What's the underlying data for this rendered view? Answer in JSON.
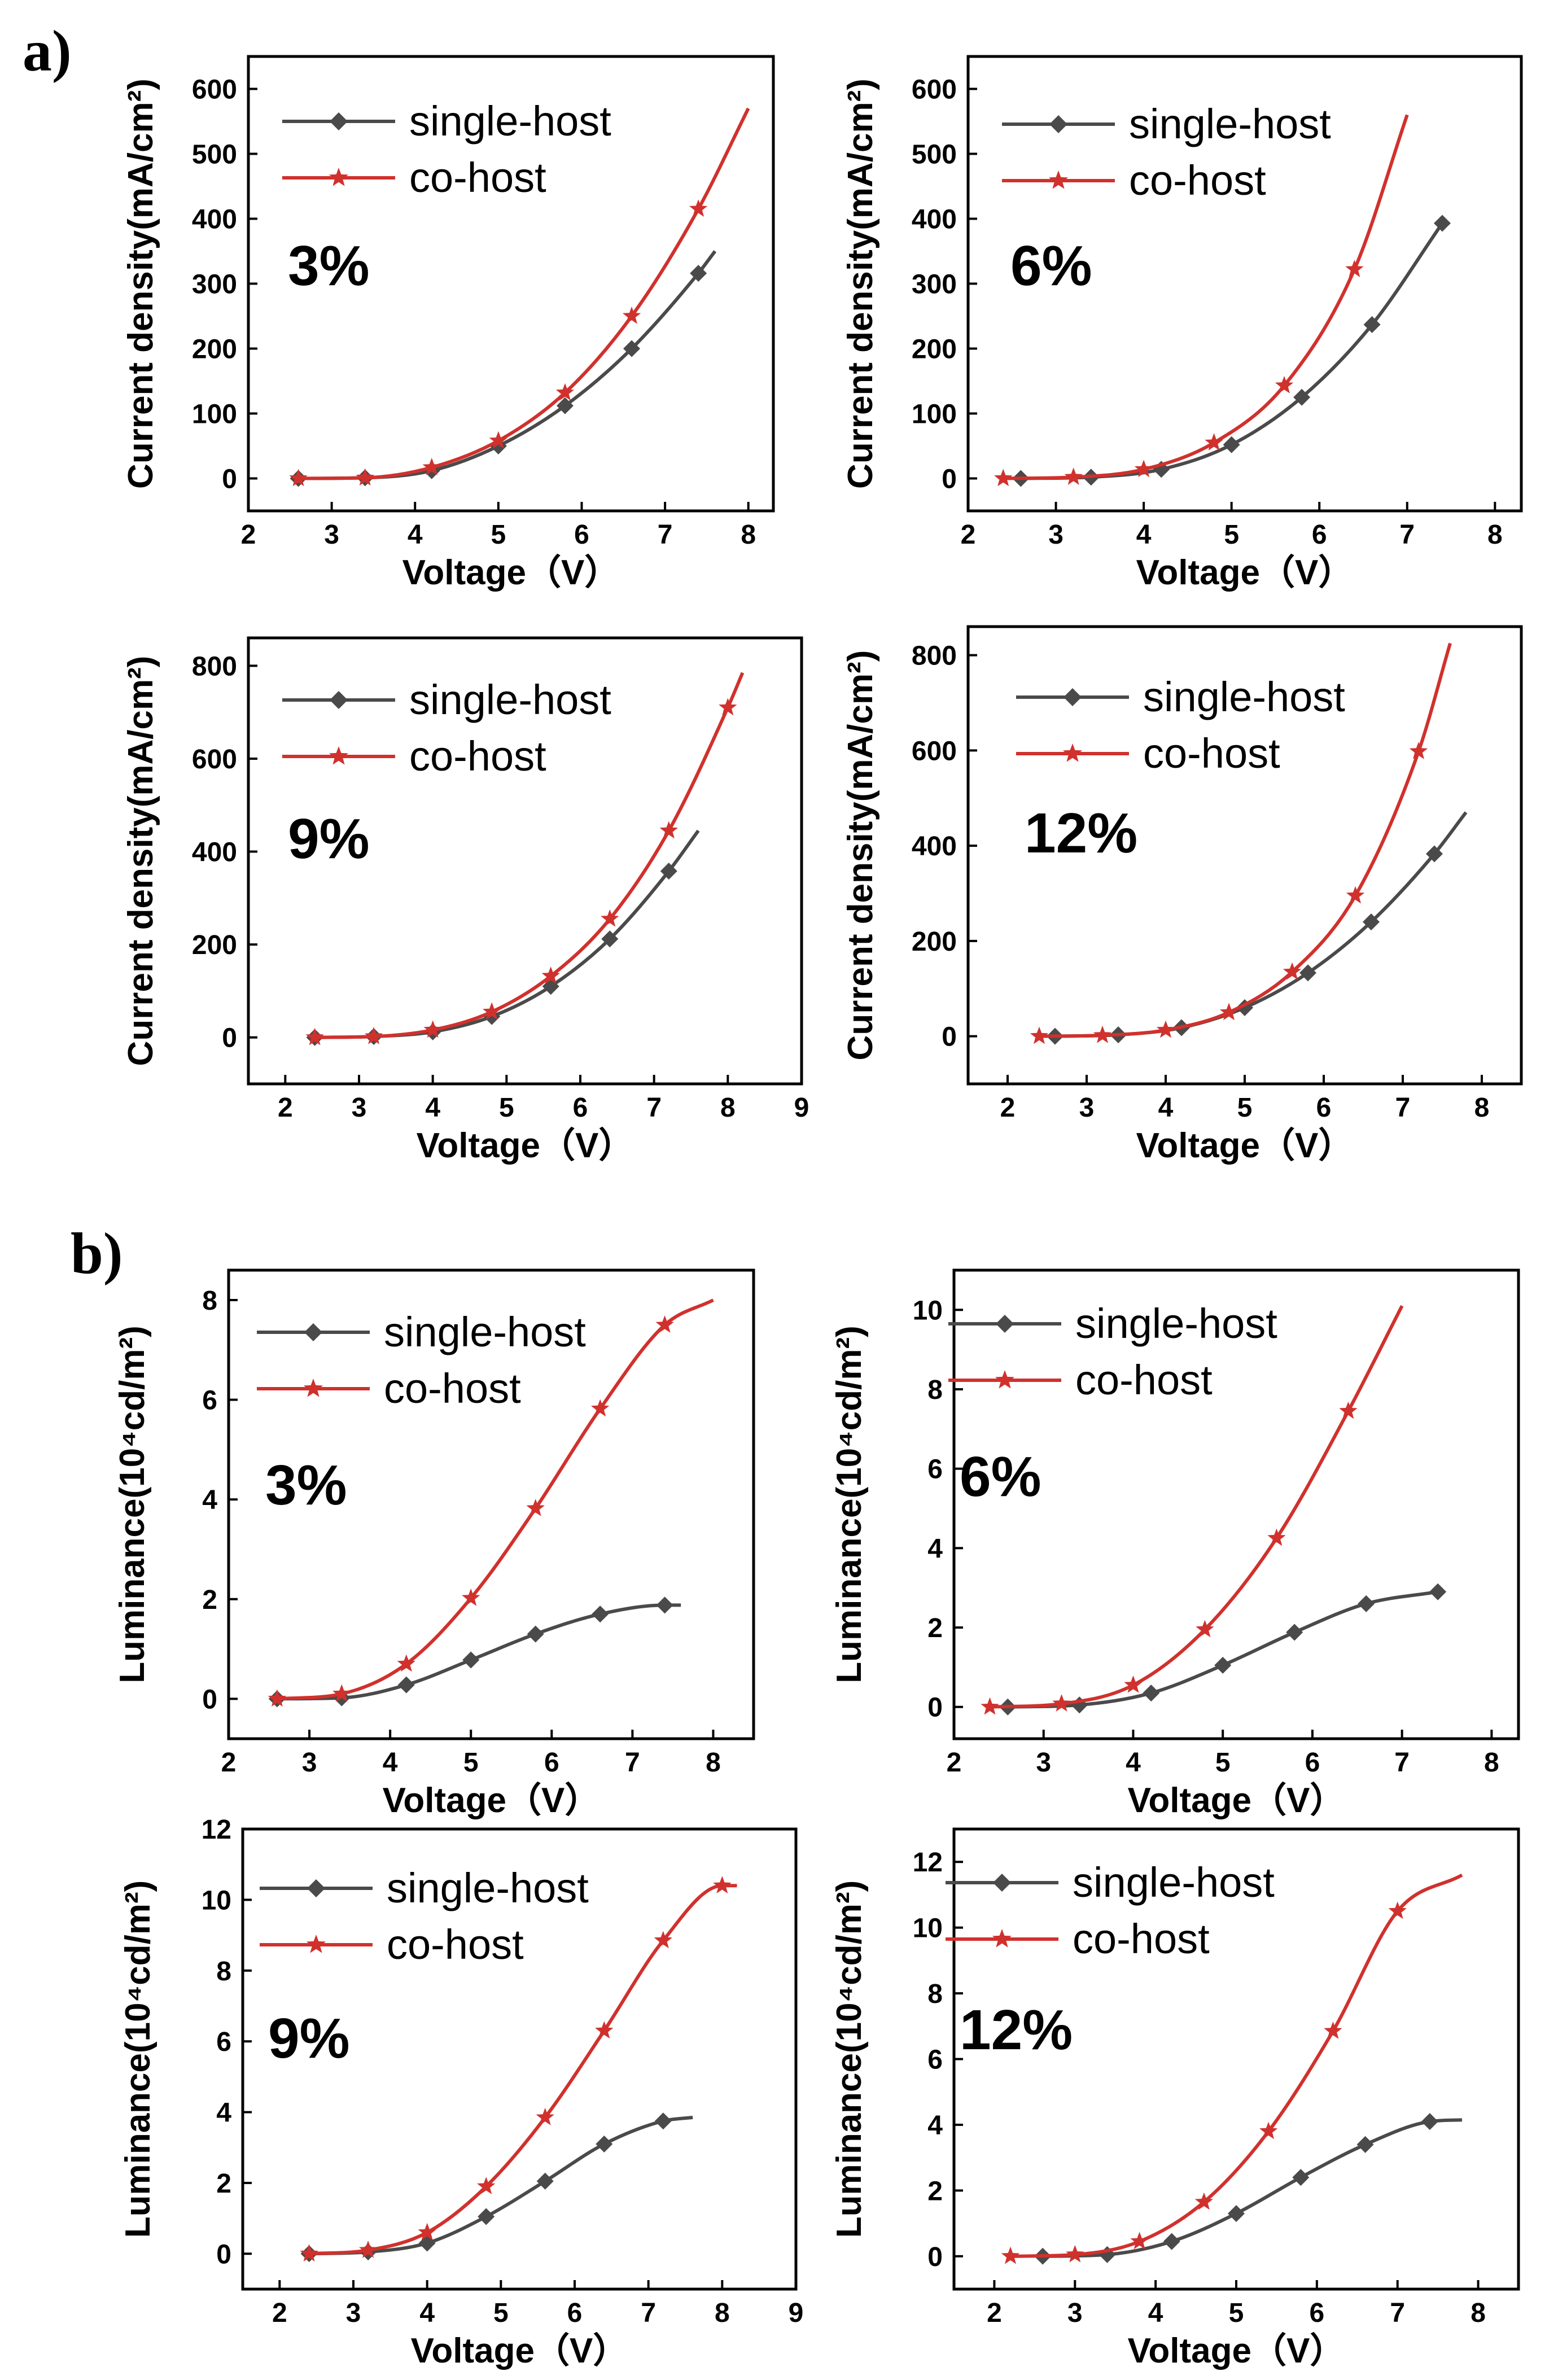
{
  "figure": {
    "panel_labels": [
      "a)",
      "b)"
    ]
  },
  "colors": {
    "single_host": "#4a4a4a",
    "co_host": "#d0312d",
    "axis": "#000000"
  },
  "chart_data": [
    {
      "type": "line",
      "panel": "a)",
      "annotation": "3%",
      "xlabel": "Voltage（V）",
      "ylabel": "Current density(mA/cm²)",
      "xlim": [
        2,
        8.3
      ],
      "ylim": [
        -50,
        650
      ],
      "xticks": [
        2,
        3,
        4,
        5,
        6,
        7,
        8
      ],
      "yticks": [
        0,
        100,
        200,
        300,
        400,
        500,
        600
      ],
      "series": [
        {
          "name": "single-host",
          "marker": "diamond",
          "x": [
            2.6,
            3.4,
            4.2,
            5.0,
            5.8,
            6.6,
            7.4
          ],
          "y": [
            0,
            1,
            12,
            50,
            112,
            200,
            316
          ],
          "line_end": [
            7.6,
            350
          ]
        },
        {
          "name": "co-host",
          "marker": "star",
          "x": [
            2.6,
            3.4,
            4.2,
            5.0,
            5.8,
            6.6,
            7.4
          ],
          "y": [
            0,
            1,
            17,
            58,
            132,
            250,
            415
          ],
          "line_end": [
            8.0,
            570
          ]
        }
      ]
    },
    {
      "type": "line",
      "panel": "a)",
      "annotation": "6%",
      "xlabel": "Voltage（V）",
      "ylabel": "Current density(mA/cm²)",
      "xlim": [
        2,
        8.3
      ],
      "ylim": [
        -50,
        650
      ],
      "xticks": [
        2,
        3,
        4,
        5,
        6,
        7,
        8
      ],
      "yticks": [
        0,
        100,
        200,
        300,
        400,
        500,
        600
      ],
      "series": [
        {
          "name": "single-host",
          "marker": "diamond",
          "x": [
            2.6,
            3.4,
            4.2,
            5.0,
            5.8,
            6.6,
            7.4
          ],
          "y": [
            0,
            2,
            14,
            52,
            125,
            237,
            393
          ],
          "line_end": null
        },
        {
          "name": "co-host",
          "marker": "star",
          "x": [
            2.4,
            3.2,
            4.0,
            4.8,
            5.6,
            6.4
          ],
          "y": [
            0,
            2,
            14,
            55,
            143,
            322
          ],
          "line_end": [
            7.0,
            560
          ]
        }
      ]
    },
    {
      "type": "line",
      "panel": "a)",
      "annotation": "9%",
      "xlabel": "Voltage（V）",
      "ylabel": "Current density(mA/cm²)",
      "xlim": [
        1.5,
        9
      ],
      "ylim": [
        -100,
        860
      ],
      "xticks": [
        2,
        3,
        4,
        5,
        6,
        7,
        8,
        9
      ],
      "yticks": [
        0,
        200,
        400,
        600,
        800
      ],
      "series": [
        {
          "name": "single-host",
          "marker": "diamond",
          "x": [
            2.4,
            3.2,
            4.0,
            4.8,
            5.6,
            6.4,
            7.2
          ],
          "y": [
            0,
            2,
            12,
            45,
            110,
            212,
            358
          ],
          "line_end": [
            7.6,
            445
          ]
        },
        {
          "name": "co-host",
          "marker": "star",
          "x": [
            2.4,
            3.2,
            4.0,
            4.8,
            5.6,
            6.4,
            7.2,
            8.0
          ],
          "y": [
            0,
            2,
            16,
            55,
            132,
            255,
            445,
            710
          ],
          "line_end": [
            8.2,
            785
          ]
        }
      ]
    },
    {
      "type": "line",
      "panel": "a)",
      "annotation": "12%",
      "xlabel": "Voltage（V）",
      "ylabel": "Current density(mA/cm²)",
      "xlim": [
        1.5,
        8.5
      ],
      "ylim": [
        -100,
        860
      ],
      "xticks": [
        2,
        3,
        4,
        5,
        6,
        7,
        8
      ],
      "yticks": [
        0,
        200,
        400,
        600,
        800
      ],
      "series": [
        {
          "name": "single-host",
          "marker": "diamond",
          "x": [
            2.6,
            3.4,
            4.2,
            5.0,
            5.8,
            6.6,
            7.4
          ],
          "y": [
            0,
            3,
            18,
            60,
            133,
            240,
            383
          ],
          "line_end": [
            7.8,
            470
          ]
        },
        {
          "name": "co-host",
          "marker": "star",
          "x": [
            2.4,
            3.2,
            4.0,
            4.8,
            5.6,
            6.4,
            7.2
          ],
          "y": [
            0,
            2,
            13,
            50,
            135,
            295,
            598
          ],
          "line_end": [
            7.6,
            825
          ]
        }
      ]
    },
    {
      "type": "line",
      "panel": "b)",
      "annotation": "3%",
      "xlabel": "Voltage（V）",
      "ylabel": "Luminance(10⁴cd/m²)",
      "xlim": [
        2,
        8.5
      ],
      "ylim": [
        -0.8,
        8.6
      ],
      "xticks": [
        2,
        3,
        4,
        5,
        6,
        7,
        8
      ],
      "yticks": [
        0,
        2,
        4,
        6,
        8
      ],
      "series": [
        {
          "name": "single-host",
          "marker": "diamond",
          "x": [
            2.6,
            3.4,
            4.2,
            5.0,
            5.8,
            6.6,
            7.4
          ],
          "y": [
            0,
            0.02,
            0.28,
            0.78,
            1.3,
            1.7,
            1.88
          ],
          "line_end": [
            7.6,
            1.88
          ]
        },
        {
          "name": "co-host",
          "marker": "star",
          "x": [
            2.6,
            3.4,
            4.2,
            5.0,
            5.8,
            6.6,
            7.4
          ],
          "y": [
            0,
            0.1,
            0.7,
            2.02,
            3.82,
            5.82,
            7.5
          ],
          "line_end": [
            8.0,
            8.0
          ]
        }
      ]
    },
    {
      "type": "line",
      "panel": "b)",
      "annotation": "6%",
      "xlabel": "Voltage（V）",
      "ylabel": "Luminance(10⁴cd/m²)",
      "xlim": [
        2,
        8.3
      ],
      "ylim": [
        -0.8,
        11
      ],
      "xticks": [
        2,
        3,
        4,
        5,
        6,
        7,
        8
      ],
      "yticks": [
        0,
        2,
        4,
        6,
        8,
        10
      ],
      "series": [
        {
          "name": "single-host",
          "marker": "diamond",
          "x": [
            2.6,
            3.4,
            4.2,
            5.0,
            5.8,
            6.6,
            7.4
          ],
          "y": [
            0,
            0.05,
            0.35,
            1.05,
            1.88,
            2.6,
            2.9
          ],
          "line_end": null
        },
        {
          "name": "co-host",
          "marker": "star",
          "x": [
            2.4,
            3.2,
            4.0,
            4.8,
            5.6,
            6.4
          ],
          "y": [
            0,
            0.08,
            0.55,
            1.95,
            4.25,
            7.45
          ],
          "line_end": [
            7.0,
            10.1
          ]
        }
      ]
    },
    {
      "type": "line",
      "panel": "b)",
      "annotation": "9%",
      "xlabel": "Voltage（V）",
      "ylabel": "Luminance(10⁴cd/m²)",
      "xlim": [
        1.5,
        9
      ],
      "ylim": [
        -1,
        12
      ],
      "xticks": [
        2,
        3,
        4,
        5,
        6,
        7,
        8,
        9
      ],
      "yticks": [
        0,
        2,
        4,
        6,
        8,
        10,
        12
      ],
      "series": [
        {
          "name": "single-host",
          "marker": "diamond",
          "x": [
            2.4,
            3.2,
            4.0,
            4.8,
            5.6,
            6.4,
            7.2
          ],
          "y": [
            0,
            0.05,
            0.3,
            1.05,
            2.05,
            3.1,
            3.75
          ],
          "line_end": [
            7.6,
            3.85
          ]
        },
        {
          "name": "co-host",
          "marker": "star",
          "x": [
            2.4,
            3.2,
            4.0,
            4.8,
            5.6,
            6.4,
            7.2,
            8.0
          ],
          "y": [
            0,
            0.1,
            0.6,
            1.9,
            3.85,
            6.3,
            8.85,
            10.4
          ],
          "line_end": [
            8.2,
            10.4
          ]
        }
      ]
    },
    {
      "type": "line",
      "panel": "b)",
      "annotation": "12%",
      "xlabel": "Voltage（V）",
      "ylabel": "Luminance(10⁴cd/m²)",
      "xlim": [
        1.5,
        8.5
      ],
      "ylim": [
        -1,
        13
      ],
      "xticks": [
        2,
        3,
        4,
        5,
        6,
        7,
        8
      ],
      "yticks": [
        0,
        2,
        4,
        6,
        8,
        10,
        12
      ],
      "series": [
        {
          "name": "single-host",
          "marker": "diamond",
          "x": [
            2.6,
            3.4,
            4.2,
            5.0,
            5.8,
            6.6,
            7.4
          ],
          "y": [
            0,
            0.05,
            0.45,
            1.3,
            2.4,
            3.4,
            4.1
          ],
          "line_end": [
            7.8,
            4.15
          ]
        },
        {
          "name": "co-host",
          "marker": "star",
          "x": [
            2.2,
            3.0,
            3.8,
            4.6,
            5.4,
            6.2,
            7.0
          ],
          "y": [
            0,
            0.05,
            0.45,
            1.65,
            3.8,
            6.85,
            10.5
          ],
          "line_end": [
            7.8,
            11.6
          ]
        }
      ]
    }
  ]
}
